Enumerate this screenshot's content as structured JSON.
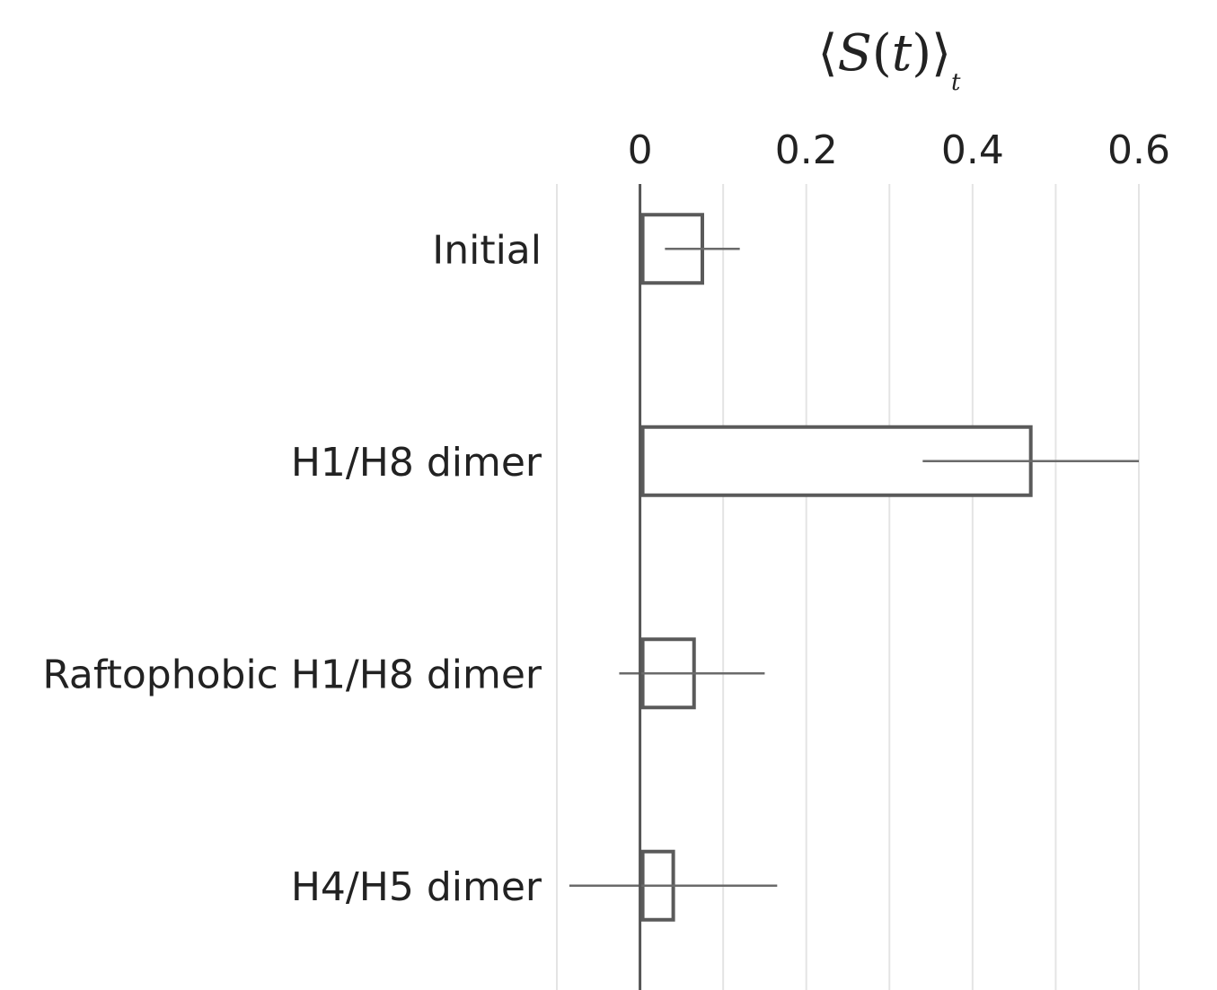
{
  "chart_data": {
    "type": "bar",
    "orientation": "horizontal",
    "title": "",
    "xlabel": {
      "open": "⟨",
      "main": "S",
      "paren_open": "(",
      "var": "t",
      "paren_close": ")",
      "close": "⟩",
      "subscript": "t"
    },
    "ylabel": "",
    "xlim": [
      -0.1,
      0.6
    ],
    "xticks": [
      0,
      0.2,
      0.4,
      0.6
    ],
    "xtick_labels": [
      "0",
      "0.2",
      "0.4",
      "0.6"
    ],
    "grid": true,
    "categories": [
      "Initial",
      "H1/H8 dimer",
      "Raftophobic H1/H8 dimer",
      "H4/H5 dimer"
    ],
    "series": [
      {
        "values": [
          0.075,
          0.47,
          0.065,
          0.04
        ],
        "error_low": [
          0.03,
          0.34,
          -0.025,
          -0.085
        ],
        "error_high": [
          0.12,
          0.6,
          0.15,
          0.165
        ]
      }
    ],
    "colors": {
      "bar_stroke": "#5a5a5a",
      "bar_fill": "#ffffff",
      "error_bar": "#6a6a6a",
      "grid": "#e4e4e4",
      "axis": "#555555"
    }
  }
}
